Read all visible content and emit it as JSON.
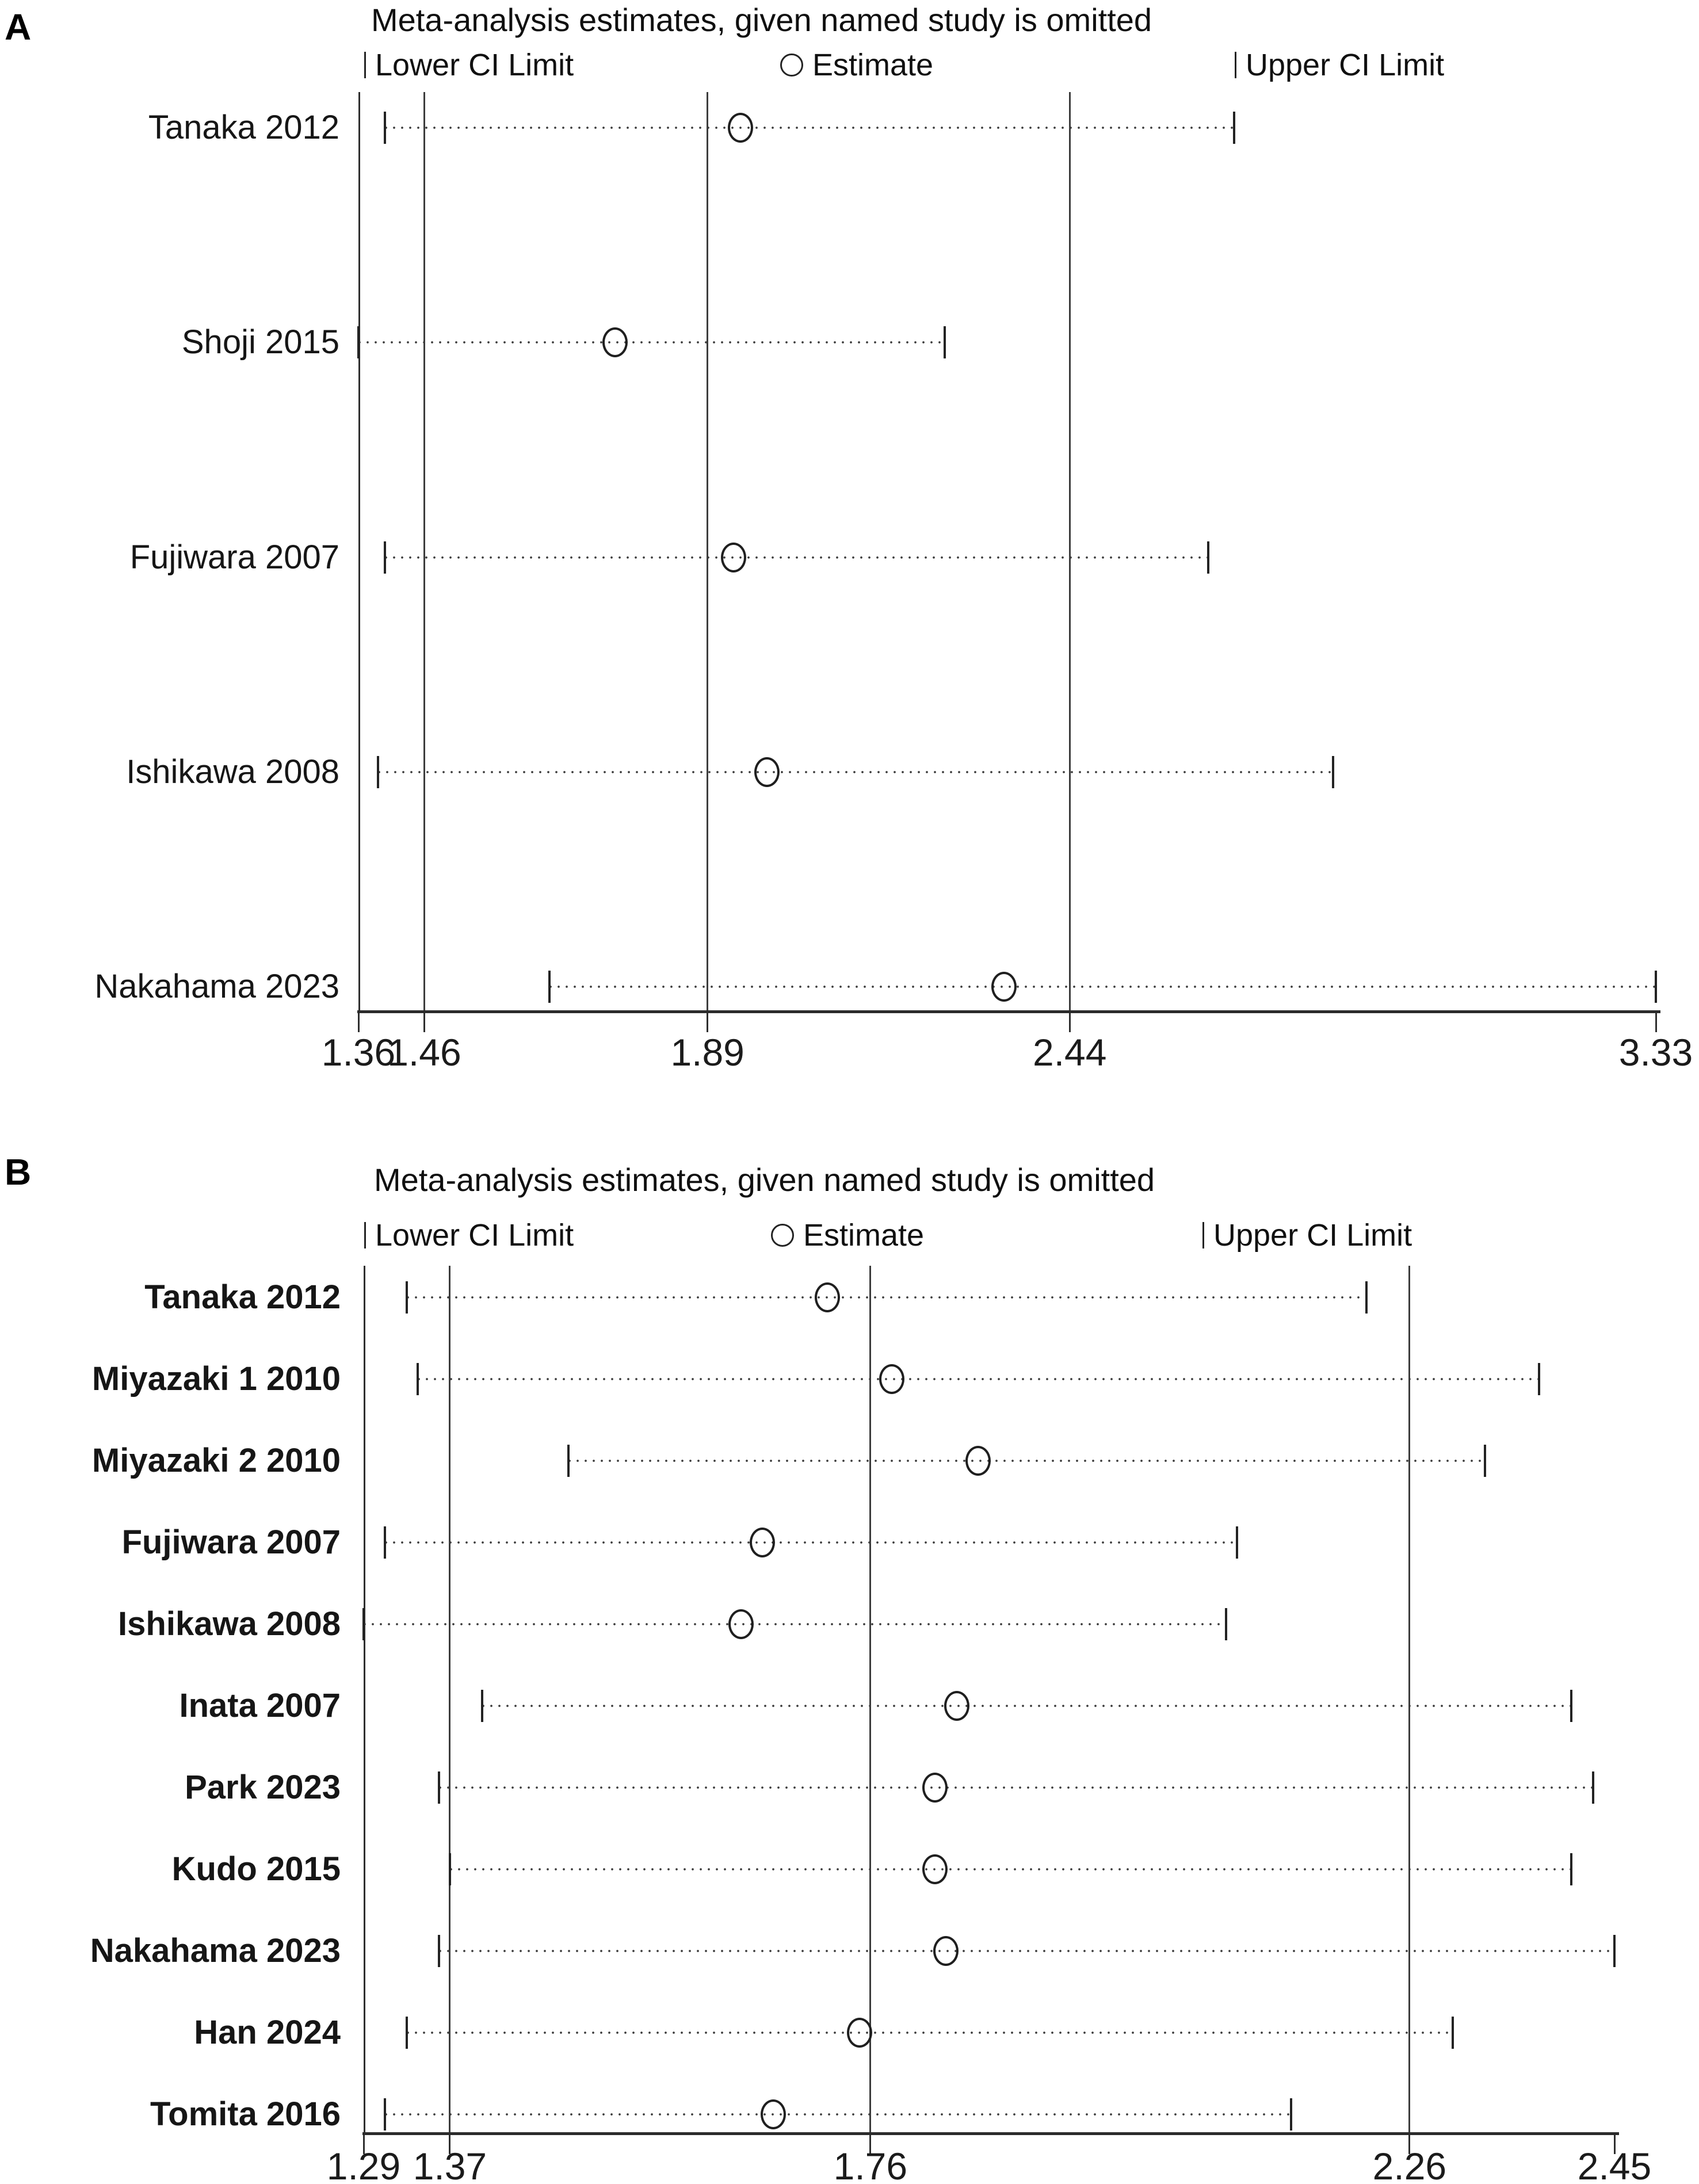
{
  "chart_data": [
    {
      "type": "scatter",
      "subtype": "leave-one-out-sensitivity-forest",
      "panel_label": "A",
      "title": "Meta-analysis estimates, given named study is omitted",
      "legend": {
        "lower": "Lower CI Limit",
        "estimate": "Estimate",
        "upper": "Upper CI Limit"
      },
      "xlim": [
        1.36,
        3.33
      ],
      "x_ticks": [
        "1.36",
        "1.46",
        "1.89",
        "2.44",
        "3.33"
      ],
      "reference_lines": [
        1.46,
        1.89,
        2.44
      ],
      "overall": {
        "estimate": 1.89,
        "ci_lower": 1.46,
        "ci_upper": 2.44
      },
      "grid": "off",
      "legend_position": "top",
      "studies": [
        {
          "label": "Tanaka 2012",
          "lower": 1.4,
          "estimate": 1.94,
          "upper": 2.69
        },
        {
          "label": "Shoji 2015",
          "lower": 1.36,
          "estimate": 1.75,
          "upper": 2.25
        },
        {
          "label": "Fujiwara 2007",
          "lower": 1.4,
          "estimate": 1.93,
          "upper": 2.65
        },
        {
          "label": "Ishikawa 2008",
          "lower": 1.39,
          "estimate": 1.98,
          "upper": 2.84
        },
        {
          "label": "Nakahama 2023",
          "lower": 1.65,
          "estimate": 2.34,
          "upper": 3.33
        }
      ]
    },
    {
      "type": "scatter",
      "subtype": "leave-one-out-sensitivity-forest",
      "panel_label": "B",
      "title": "Meta-analysis estimates, given named study is omitted",
      "legend": {
        "lower": "Lower CI Limit",
        "estimate": "Estimate",
        "upper": "Upper CI Limit"
      },
      "xlim": [
        1.29,
        2.45
      ],
      "x_ticks": [
        "1.29",
        "1.37",
        "1.76",
        "2.26",
        "2.45"
      ],
      "reference_lines": [
        1.37,
        1.76,
        2.26
      ],
      "overall": {
        "estimate": 1.76,
        "ci_lower": 1.37,
        "ci_upper": 2.26
      },
      "grid": "off",
      "legend_position": "top",
      "studies": [
        {
          "label": "Tanaka 2012",
          "lower": 1.33,
          "estimate": 1.72,
          "upper": 2.22
        },
        {
          "label": "Miyazaki 1 2010",
          "lower": 1.34,
          "estimate": 1.78,
          "upper": 2.38
        },
        {
          "label": "Miyazaki 2 2010",
          "lower": 1.48,
          "estimate": 1.86,
          "upper": 2.33
        },
        {
          "label": "Fujiwara 2007",
          "lower": 1.31,
          "estimate": 1.66,
          "upper": 2.1
        },
        {
          "label": "Ishikawa 2008",
          "lower": 1.29,
          "estimate": 1.64,
          "upper": 2.09
        },
        {
          "label": "Inata 2007",
          "lower": 1.4,
          "estimate": 1.84,
          "upper": 2.41
        },
        {
          "label": "Park 2023",
          "lower": 1.36,
          "estimate": 1.82,
          "upper": 2.43
        },
        {
          "label": "Kudo 2015",
          "lower": 1.37,
          "estimate": 1.82,
          "upper": 2.41
        },
        {
          "label": "Nakahama 2023",
          "lower": 1.36,
          "estimate": 1.83,
          "upper": 2.45
        },
        {
          "label": "Han 2024",
          "lower": 1.33,
          "estimate": 1.75,
          "upper": 2.3
        },
        {
          "label": "Tomita 2016",
          "lower": 1.31,
          "estimate": 1.67,
          "upper": 2.15
        }
      ]
    }
  ]
}
